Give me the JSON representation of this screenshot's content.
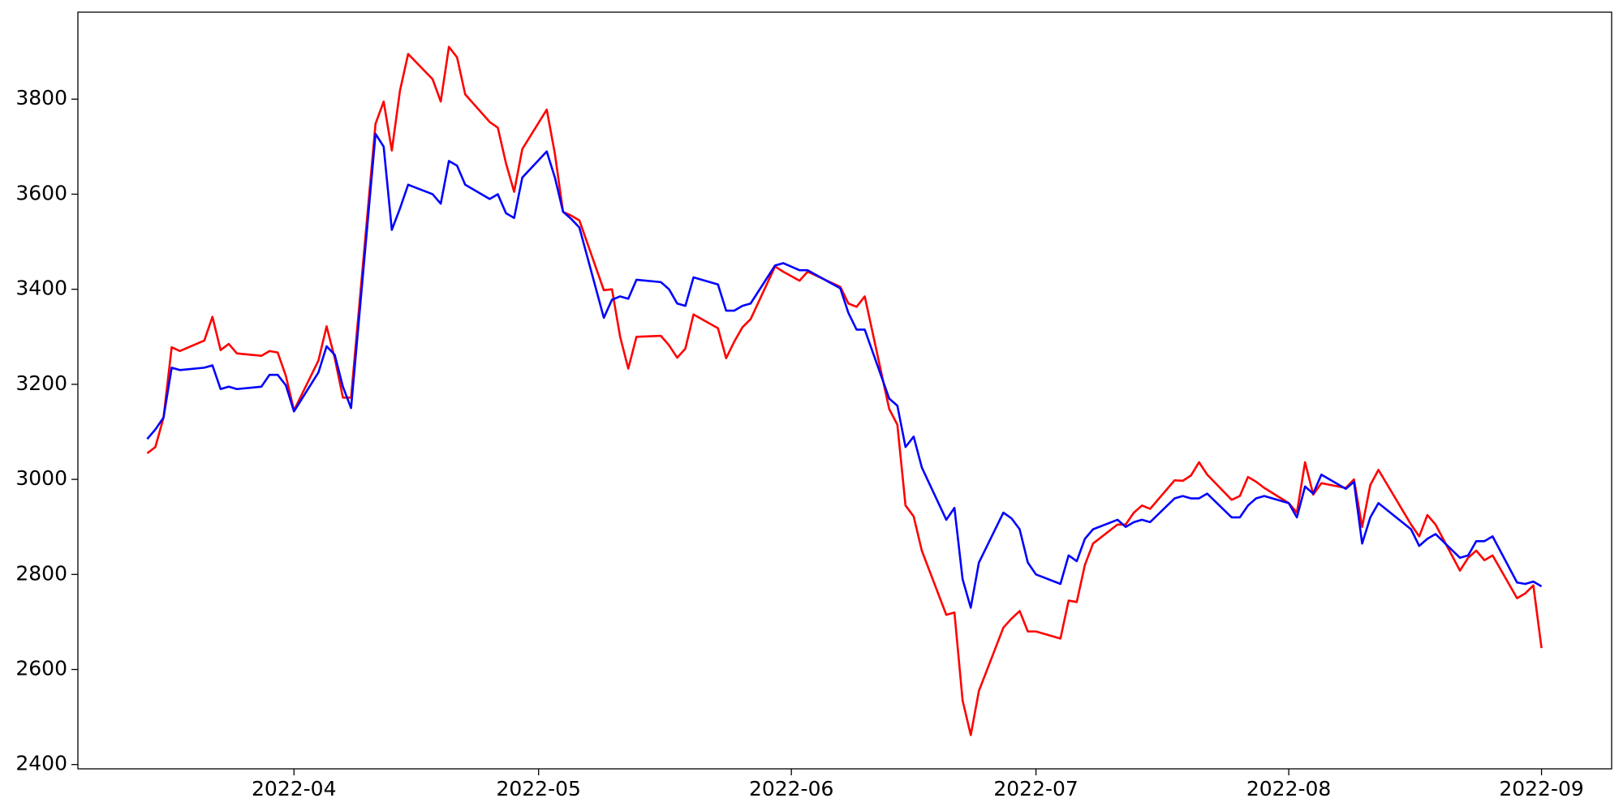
{
  "chart_data": {
    "type": "line",
    "x": [
      73,
      74,
      75,
      76,
      77,
      80,
      81,
      82,
      83,
      84,
      87,
      88,
      89,
      90,
      91,
      94,
      95,
      96,
      97,
      98,
      101,
      102,
      103,
      104,
      105,
      108,
      109,
      110,
      111,
      112,
      115,
      116,
      117,
      118,
      119,
      122,
      123,
      124,
      125,
      126,
      129,
      130,
      131,
      132,
      133,
      136,
      137,
      138,
      139,
      140,
      143,
      144,
      145,
      146,
      147,
      150,
      151,
      153,
      154,
      158,
      159,
      160,
      161,
      164,
      165,
      166,
      167,
      168,
      171,
      172,
      173,
      174,
      175,
      178,
      179,
      180,
      181,
      182,
      185,
      186,
      187,
      188,
      189,
      192,
      193,
      194,
      195,
      196,
      199,
      200,
      201,
      202,
      203,
      206,
      207,
      208,
      209,
      210,
      213,
      214,
      215,
      216,
      217,
      220,
      221,
      222,
      223,
      224,
      228,
      229,
      230,
      231,
      234,
      235,
      236,
      237,
      238,
      241,
      242,
      243,
      244
    ],
    "series": [
      {
        "color": "#ff0000",
        "values": [
          3055,
          3068,
          3130,
          3278,
          3270,
          3292,
          3342,
          3272,
          3285,
          3265,
          3260,
          3270,
          3267,
          3218,
          3145,
          3250,
          3322,
          3255,
          3172,
          3172,
          3748,
          3795,
          3692,
          3818,
          3895,
          3842,
          3795,
          3910,
          3888,
          3810,
          3752,
          3740,
          3665,
          3605,
          3695,
          3778,
          3685,
          3563,
          3555,
          3545,
          3398,
          3400,
          3300,
          3233,
          3300,
          3302,
          3282,
          3256,
          3275,
          3347,
          3318,
          3255,
          3290,
          3320,
          3337,
          3448,
          3437,
          3418,
          3437,
          3405,
          3370,
          3363,
          3385,
          3148,
          3115,
          2945,
          2922,
          2850,
          2715,
          2720,
          2535,
          2462,
          2555,
          2688,
          2707,
          2723,
          2680,
          2680,
          2665,
          2745,
          2742,
          2820,
          2865,
          2905,
          2905,
          2930,
          2945,
          2938,
          2998,
          2997,
          3008,
          3036,
          3010,
          2957,
          2965,
          3005,
          2995,
          2982,
          2950,
          2930,
          3036,
          2968,
          2992,
          2982,
          3000,
          2900,
          2988,
          3020,
          2905,
          2880,
          2925,
          2905,
          2808,
          2835,
          2850,
          2830,
          2840,
          2750,
          2760,
          2777,
          2645
        ]
      },
      {
        "color": "#0000ff",
        "values": [
          3085,
          3105,
          3130,
          3235,
          3230,
          3235,
          3240,
          3190,
          3195,
          3190,
          3195,
          3220,
          3220,
          3198,
          3143,
          3225,
          3280,
          3262,
          3195,
          3150,
          3727,
          3700,
          3525,
          3570,
          3620,
          3600,
          3580,
          3670,
          3660,
          3620,
          3590,
          3600,
          3560,
          3550,
          3635,
          3690,
          3635,
          3563,
          3548,
          3530,
          3340,
          3378,
          3385,
          3380,
          3420,
          3415,
          3400,
          3370,
          3365,
          3425,
          3410,
          3355,
          3355,
          3365,
          3370,
          3450,
          3455,
          3440,
          3440,
          3402,
          3350,
          3315,
          3315,
          3170,
          3155,
          3068,
          3090,
          3025,
          2915,
          2940,
          2790,
          2730,
          2825,
          2930,
          2918,
          2895,
          2825,
          2800,
          2780,
          2840,
          2828,
          2875,
          2895,
          2915,
          2900,
          2910,
          2915,
          2910,
          2960,
          2965,
          2960,
          2960,
          2970,
          2920,
          2920,
          2945,
          2960,
          2965,
          2950,
          2920,
          2985,
          2970,
          3010,
          2980,
          2995,
          2865,
          2920,
          2950,
          2895,
          2860,
          2875,
          2885,
          2835,
          2840,
          2870,
          2870,
          2880,
          2783,
          2780,
          2785,
          2775
        ]
      }
    ],
    "xlim": [
      64.5,
      252.6
    ],
    "xticks": [
      {
        "value": 91,
        "label": "2022-04"
      },
      {
        "value": 121,
        "label": "2022-05"
      },
      {
        "value": 152,
        "label": "2022-06"
      },
      {
        "value": 182,
        "label": "2022-07"
      },
      {
        "value": 213,
        "label": "2022-08"
      },
      {
        "value": 244,
        "label": "2022-09"
      }
    ],
    "ylim": [
      2391,
      3983
    ],
    "yticks": [
      2400,
      2600,
      2800,
      3000,
      3200,
      3400,
      3600,
      3800
    ]
  }
}
